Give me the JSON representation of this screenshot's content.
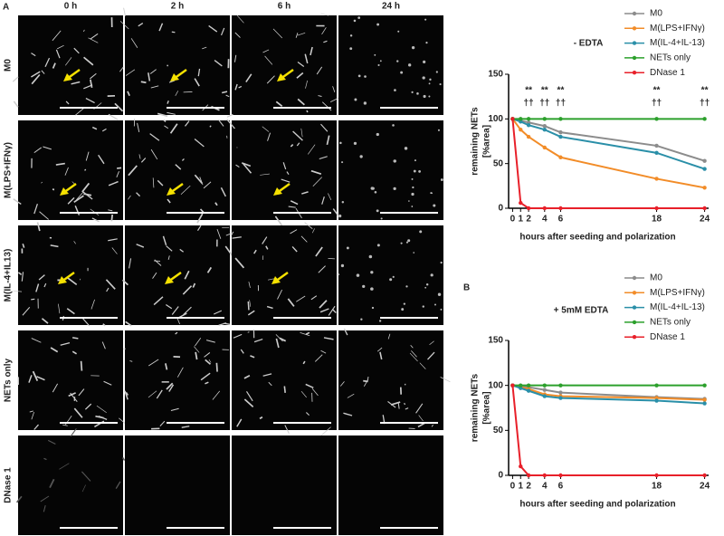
{
  "panel_labels": [
    "A",
    "B"
  ],
  "columns": [
    "0 h",
    "2 h",
    "6 h",
    "24 h"
  ],
  "rows": [
    {
      "label": "M0",
      "color": "#8c8c8c"
    },
    {
      "label": "M(LPS+IFNγ)",
      "color": "#f28c28"
    },
    {
      "label": "M(IL-4+IL13)",
      "color": "#2a9bb5"
    },
    {
      "label": "NETs only",
      "color": "#2ca02c"
    },
    {
      "label": "DNase 1",
      "color": "#e8202a"
    }
  ],
  "chart_data": [
    {
      "type": "line",
      "subtitle": "- EDTA",
      "y_label": [
        "remaining NETs",
        "[%area]"
      ],
      "x_label": "hours after seeding and polarization",
      "x": [
        0,
        1,
        2,
        4,
        6,
        18,
        24
      ],
      "xlim": [
        -0.5,
        24.5
      ],
      "xticks": [
        0,
        1,
        2,
        4,
        6,
        18,
        24
      ],
      "ylim": [
        0,
        150
      ],
      "yticks": [
        0,
        50,
        100,
        150
      ],
      "series": [
        {
          "name": "M0",
          "color": "#8c8c8c",
          "values": [
            100,
            98,
            96,
            92,
            85,
            70,
            53
          ]
        },
        {
          "name": "M(LPS+IFNγ)",
          "color": "#f28c28",
          "values": [
            100,
            88,
            80,
            68,
            57,
            33,
            23
          ]
        },
        {
          "name": "M(IL-4+IL-13)",
          "color": "#2a8fa8",
          "values": [
            100,
            97,
            93,
            88,
            80,
            62,
            44
          ]
        },
        {
          "name": "NETs only",
          "color": "#2ca02c",
          "values": [
            100,
            100,
            100,
            100,
            100,
            100,
            100
          ]
        },
        {
          "name": "DNase 1",
          "color": "#e8202a",
          "values": [
            100,
            6,
            0,
            0,
            0,
            0,
            0
          ]
        }
      ],
      "annotations": [
        {
          "x": 2,
          "labels": [
            "**",
            "††"
          ]
        },
        {
          "x": 4,
          "labels": [
            "**",
            "††"
          ]
        },
        {
          "x": 6,
          "labels": [
            "**",
            "††"
          ]
        },
        {
          "x": 18,
          "labels": [
            "**",
            "††"
          ]
        },
        {
          "x": 24,
          "labels": [
            "**",
            "††"
          ]
        }
      ]
    },
    {
      "type": "line",
      "subtitle": "+ 5mM EDTA",
      "y_label": [
        "remaining NETs",
        "[%area]"
      ],
      "x_label": "hours after seeding and polarization",
      "x": [
        0,
        1,
        2,
        4,
        6,
        18,
        24
      ],
      "xlim": [
        -0.5,
        24.5
      ],
      "xticks": [
        0,
        1,
        2,
        4,
        6,
        18,
        24
      ],
      "ylim": [
        0,
        150
      ],
      "yticks": [
        0,
        50,
        100,
        150
      ],
      "series": [
        {
          "name": "M0",
          "color": "#8c8c8c",
          "values": [
            100,
            99,
            98,
            95,
            92,
            87,
            85
          ]
        },
        {
          "name": "M(LPS+IFNγ)",
          "color": "#f28c28",
          "values": [
            100,
            98,
            96,
            90,
            88,
            86,
            84
          ]
        },
        {
          "name": "M(IL-4+IL-13)",
          "color": "#2a8fa8",
          "values": [
            100,
            97,
            94,
            88,
            86,
            83,
            80
          ]
        },
        {
          "name": "NETs only",
          "color": "#2ca02c",
          "values": [
            100,
            100,
            100,
            100,
            100,
            100,
            100
          ]
        },
        {
          "name": "DNase 1",
          "color": "#e8202a",
          "values": [
            100,
            10,
            0,
            0,
            0,
            0,
            0
          ]
        }
      ],
      "annotations": []
    }
  ]
}
